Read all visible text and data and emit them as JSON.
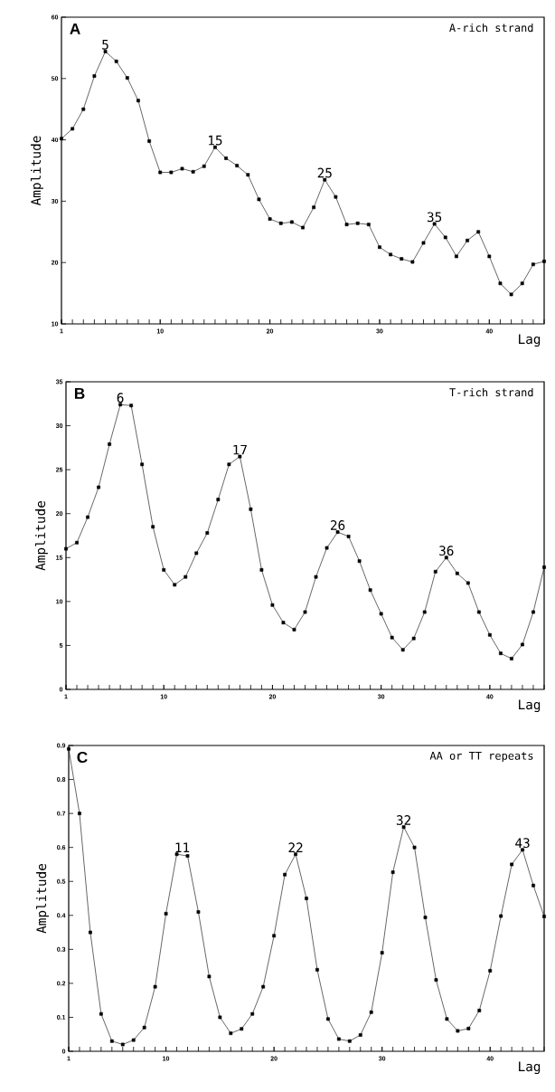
{
  "chart_data": [
    {
      "type": "line",
      "title": "A-rich strand",
      "xlabel": "Lag",
      "ylabel": "Amplitude",
      "color": "#000000",
      "marker": "square",
      "x": [
        1,
        2,
        3,
        4,
        5,
        6,
        7,
        8,
        9,
        10,
        11,
        12,
        13,
        14,
        15,
        16,
        17,
        18,
        19,
        20,
        21,
        22,
        23,
        24,
        25,
        26,
        27,
        28,
        29,
        30,
        31,
        32,
        33,
        34,
        35,
        36,
        37,
        38,
        39,
        40,
        41,
        42,
        43,
        44,
        45
      ],
      "values": [
        40.2,
        41.8,
        45.0,
        50.4,
        54.4,
        52.8,
        50.1,
        46.4,
        39.8,
        34.7,
        34.7,
        35.3,
        34.8,
        35.7,
        38.8,
        37.0,
        35.8,
        34.3,
        30.3,
        27.1,
        26.4,
        26.6,
        25.7,
        29.0,
        33.5,
        30.7,
        26.2,
        26.4,
        26.2,
        22.5,
        21.3,
        20.6,
        20.1,
        23.2,
        26.3,
        24.1,
        21.0,
        23.6,
        25.0,
        21.0,
        16.6,
        14.8,
        16.6,
        19.7,
        20.2
      ],
      "xlim": [
        1,
        45
      ],
      "ylim": [
        10,
        60
      ],
      "xticks": [
        1,
        10,
        20,
        30,
        40
      ],
      "yticks": [
        10,
        20,
        30,
        40,
        50,
        60
      ],
      "annotations": [
        "A",
        {
          "text": "5",
          "x": 5,
          "y": 54.4
        },
        {
          "text": "15",
          "x": 15,
          "y": 38.8
        },
        {
          "text": "25",
          "x": 25,
          "y": 33.5
        },
        {
          "text": "35",
          "x": 35,
          "y": 26.3
        }
      ]
    },
    {
      "type": "line",
      "title": "T-rich strand",
      "xlabel": "Lag",
      "ylabel": "Amplitude",
      "color": "#000000",
      "marker": "square",
      "x": [
        1,
        2,
        3,
        4,
        5,
        6,
        7,
        8,
        9,
        10,
        11,
        12,
        13,
        14,
        15,
        16,
        17,
        18,
        19,
        20,
        21,
        22,
        23,
        24,
        25,
        26,
        27,
        28,
        29,
        30,
        31,
        32,
        33,
        34,
        35,
        36,
        37,
        38,
        39,
        40,
        41,
        42,
        43,
        44,
        45
      ],
      "values": [
        16.0,
        16.7,
        19.6,
        23.0,
        27.9,
        32.4,
        32.3,
        25.6,
        18.5,
        13.6,
        11.9,
        12.8,
        15.5,
        17.8,
        21.6,
        25.6,
        26.5,
        20.5,
        13.6,
        9.6,
        7.6,
        6.8,
        8.8,
        12.8,
        16.1,
        17.9,
        17.4,
        14.6,
        11.3,
        8.6,
        5.9,
        4.5,
        5.8,
        8.8,
        13.4,
        15.0,
        13.2,
        12.1,
        8.8,
        6.2,
        4.1,
        3.5,
        5.1,
        8.8,
        13.9
      ],
      "xlim": [
        1,
        45
      ],
      "ylim": [
        0,
        35
      ],
      "xticks": [
        1,
        10,
        20,
        30,
        40
      ],
      "yticks": [
        0,
        5,
        10,
        15,
        20,
        25,
        30,
        35
      ],
      "annotations": [
        "B",
        {
          "text": "6",
          "x": 6,
          "y": 32.4
        },
        {
          "text": "17",
          "x": 17,
          "y": 26.5
        },
        {
          "text": "26",
          "x": 26,
          "y": 17.9
        },
        {
          "text": "36",
          "x": 36,
          "y": 15.0
        }
      ]
    },
    {
      "type": "line",
      "title": "AA or TT repeats",
      "xlabel": "Lag",
      "ylabel": "Amplitude",
      "color": "#000000",
      "marker": "square",
      "x": [
        1,
        2,
        3,
        4,
        5,
        6,
        7,
        8,
        9,
        10,
        11,
        12,
        13,
        14,
        15,
        16,
        17,
        18,
        19,
        20,
        21,
        22,
        23,
        24,
        25,
        26,
        27,
        28,
        29,
        30,
        31,
        32,
        33,
        34,
        35,
        36,
        37,
        38,
        39,
        40,
        41,
        42,
        43,
        44,
        45
      ],
      "values": [
        0.89,
        0.7,
        0.35,
        0.11,
        0.03,
        0.02,
        0.033,
        0.07,
        0.19,
        0.405,
        0.58,
        0.575,
        0.41,
        0.22,
        0.1,
        0.053,
        0.066,
        0.11,
        0.19,
        0.34,
        0.52,
        0.58,
        0.45,
        0.24,
        0.095,
        0.036,
        0.03,
        0.048,
        0.115,
        0.29,
        0.527,
        0.66,
        0.6,
        0.394,
        0.21,
        0.095,
        0.06,
        0.067,
        0.12,
        0.237,
        0.398,
        0.55,
        0.593,
        0.488,
        0.397
      ],
      "xlim": [
        1,
        45
      ],
      "ylim": [
        0,
        0.9
      ],
      "xticks": [
        1,
        10,
        20,
        30,
        40
      ],
      "yticks": [
        0,
        0.1,
        0.2,
        0.3,
        0.4,
        0.5,
        0.6,
        0.7,
        0.8,
        0.9
      ],
      "annotations": [
        "C",
        {
          "text": "11",
          "x": 11.5,
          "y": 0.58
        },
        {
          "text": "22",
          "x": 22,
          "y": 0.58
        },
        {
          "text": "32",
          "x": 32,
          "y": 0.66
        },
        {
          "text": "43",
          "x": 43,
          "y": 0.593
        }
      ]
    }
  ]
}
